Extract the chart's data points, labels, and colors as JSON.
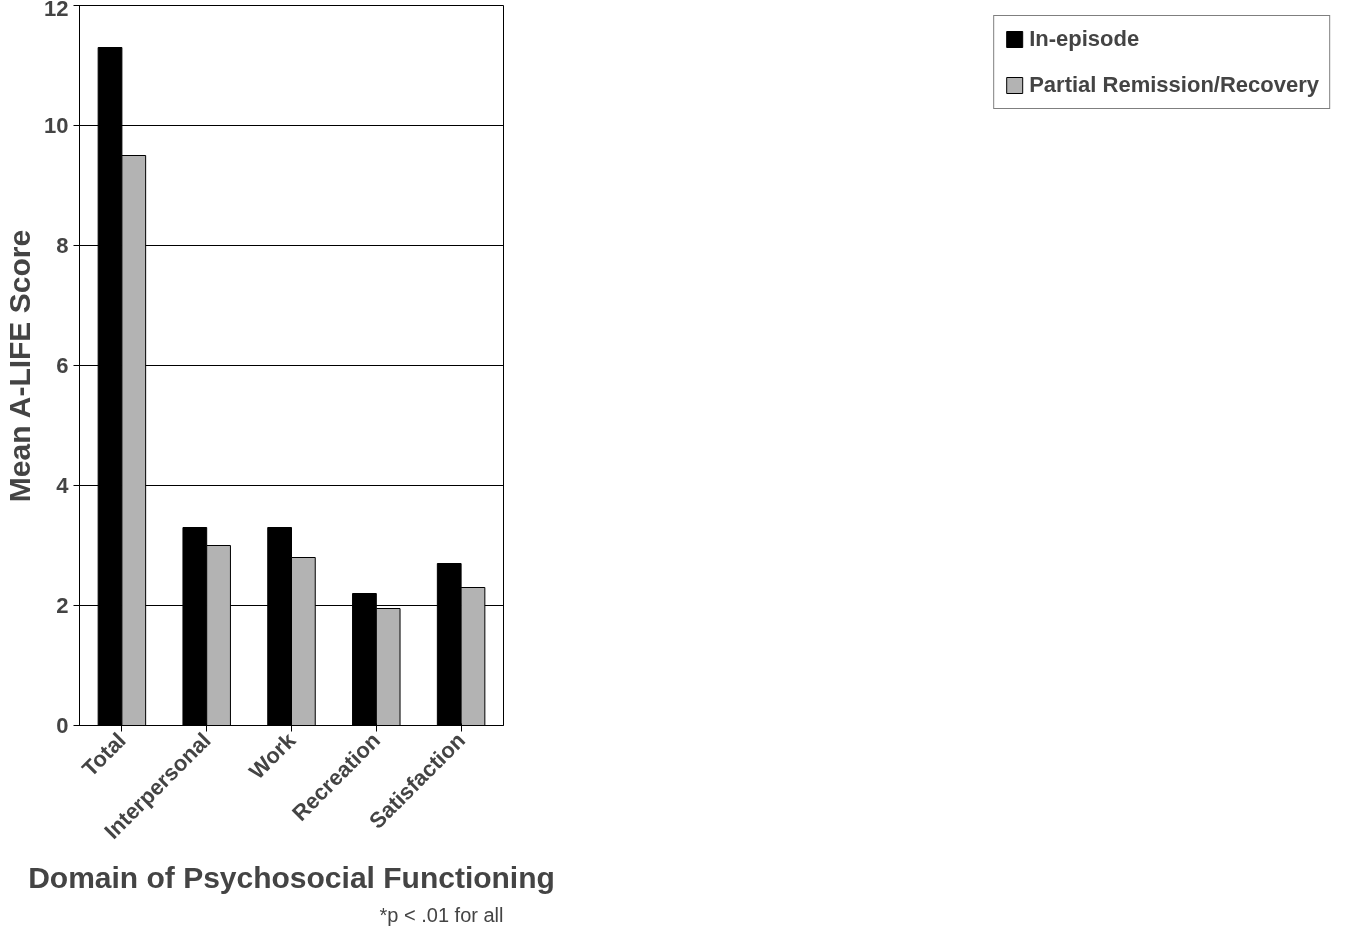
{
  "chart_data": {
    "type": "bar",
    "xlabel": "Domain of Psychosocial Functioning",
    "ylabel": "Mean A-LIFE Score",
    "categories": [
      "Total",
      "Interpersonal",
      "Work",
      "Recreation",
      "Satisfaction"
    ],
    "series": [
      {
        "name": "In-episode",
        "color": "#000000",
        "values": [
          11.3,
          3.3,
          3.3,
          2.2,
          2.7
        ]
      },
      {
        "name": "Partial Remission/Recovery",
        "color": "#b3b3b3",
        "values": [
          9.5,
          3.0,
          2.8,
          1.95,
          2.3
        ]
      }
    ],
    "ylim": [
      0,
      12
    ],
    "yticks": [
      0,
      2,
      4,
      6,
      8,
      10,
      12
    ],
    "grid": "y",
    "legend": "right",
    "annotations": [
      "*p < .01 for all"
    ]
  }
}
